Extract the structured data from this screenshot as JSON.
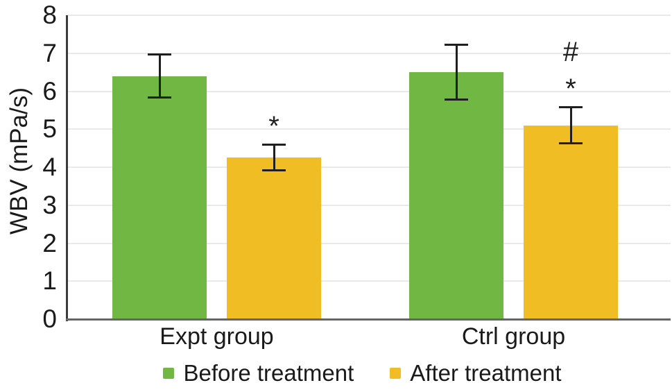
{
  "chart_data": {
    "type": "bar",
    "title": "",
    "xlabel": "",
    "ylabel": "WBV (mPa/s)",
    "ylim": [
      0,
      8
    ],
    "yticks": [
      0,
      1,
      2,
      3,
      4,
      5,
      6,
      7,
      8
    ],
    "grid": true,
    "legend_position": "bottom",
    "categories": [
      "Expt group",
      "Ctrl group"
    ],
    "series": [
      {
        "name": "Before treatment",
        "color": "#70B843",
        "values": [
          6.4,
          6.5
        ],
        "errors": [
          0.57,
          0.73
        ],
        "annotations": [
          [],
          []
        ]
      },
      {
        "name": "After treatment",
        "color": "#F0BD25",
        "values": [
          4.25,
          5.1
        ],
        "errors": [
          0.35,
          0.48
        ],
        "annotations": [
          [
            "*"
          ],
          [
            "*",
            "#"
          ]
        ]
      }
    ]
  },
  "colors": {
    "before_bar": "#70B843",
    "after_bar": "#F0BD25",
    "gridline": "#e9e9e9",
    "axis_line": "#3a3a3a",
    "baseline": "#656565",
    "error_bar": "#1f1f1f",
    "text": "#1a1a1a",
    "background": "#ffffff"
  }
}
